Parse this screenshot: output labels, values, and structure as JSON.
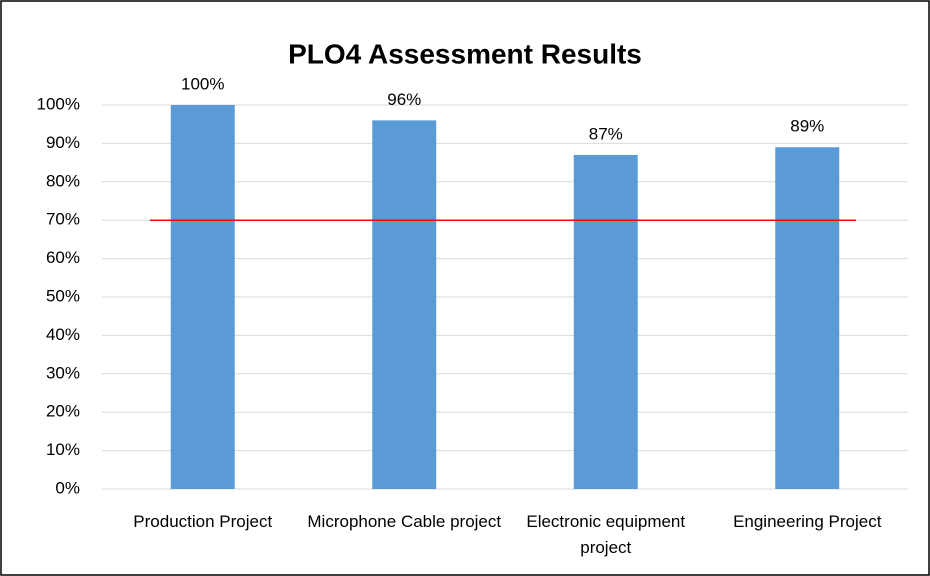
{
  "chart_data": {
    "type": "bar",
    "title": "PLO4 Assessment Results",
    "categories": [
      "Production Project",
      "Microphone Cable project",
      "Electronic equipment project",
      "Engineering Project"
    ],
    "values": [
      100,
      96,
      87,
      89
    ],
    "value_labels": [
      "100%",
      "96%",
      "87%",
      "89%"
    ],
    "color": "#5b9bd5",
    "ylim": [
      0,
      100
    ],
    "yticks": [
      {
        "value": 0,
        "label": "0%"
      },
      {
        "value": 10,
        "label": "10%"
      },
      {
        "value": 20,
        "label": "20%"
      },
      {
        "value": 30,
        "label": "30%"
      },
      {
        "value": 40,
        "label": "40%"
      },
      {
        "value": 50,
        "label": "50%"
      },
      {
        "value": 60,
        "label": "60%"
      },
      {
        "value": 70,
        "label": "70%"
      },
      {
        "value": 80,
        "label": "80%"
      },
      {
        "value": 90,
        "label": "90%"
      },
      {
        "value": 100,
        "label": "100%"
      }
    ],
    "grid": true,
    "reference_line": {
      "value": 70,
      "color": "#ff0000"
    }
  }
}
